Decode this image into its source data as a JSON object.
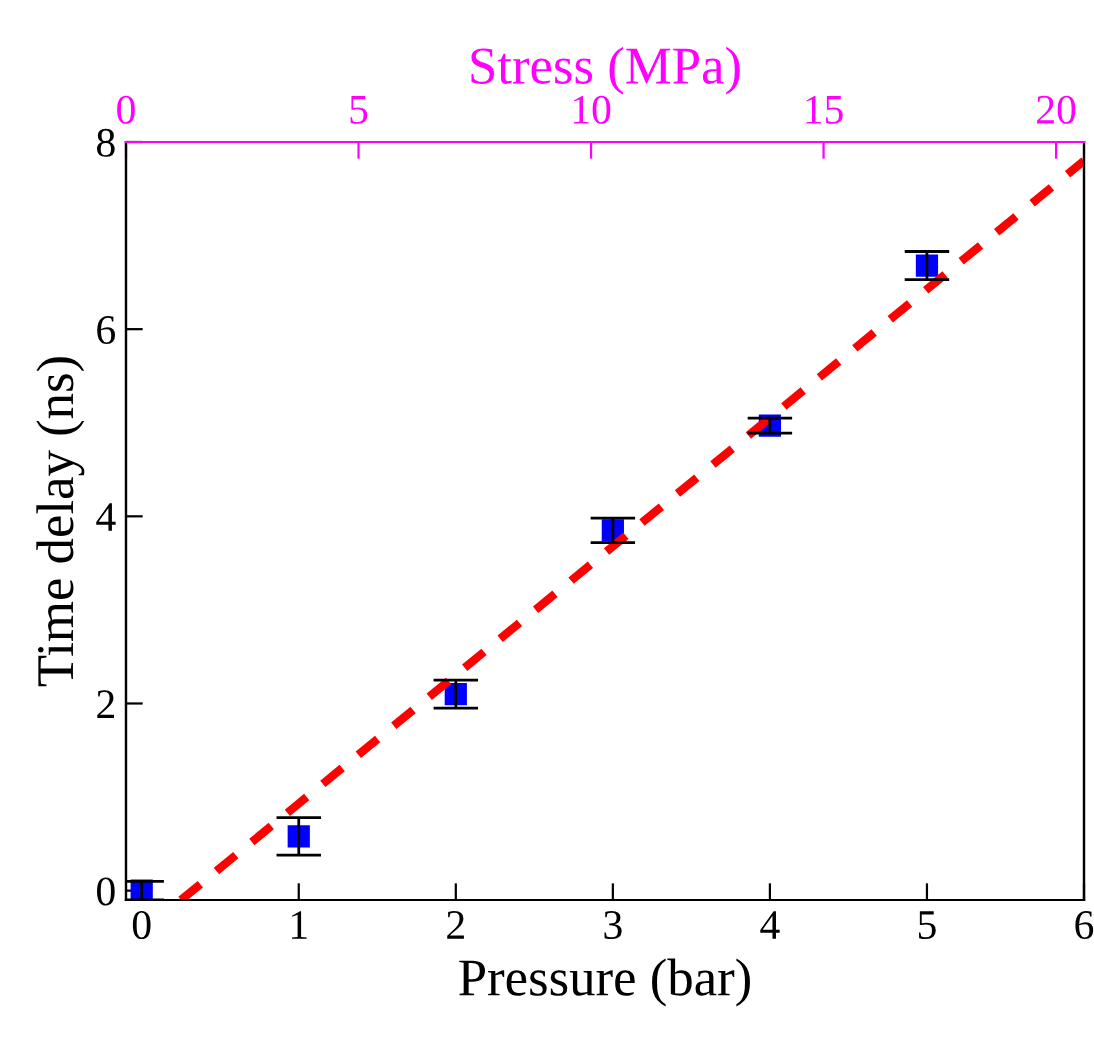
{
  "chart_data": {
    "type": "scatter",
    "xlabel": "Pressure (bar)",
    "ylabel": "Time delay (ns)",
    "x2label": "Stress (MPa)",
    "x": [
      0,
      1,
      2,
      3,
      4,
      5
    ],
    "series": [
      {
        "color": "#0000ff",
        "marker": "square",
        "values": [
          0.0,
          0.58,
          2.1,
          3.85,
          4.97,
          6.68
        ],
        "errors": [
          0.1,
          0.2,
          0.15,
          0.13,
          0.08,
          0.15
        ]
      },
      {
        "type": "line",
        "color": "#ff0000",
        "line_style": "dashed",
        "marker": "none",
        "x": [
          0.25,
          6
        ],
        "values": [
          -0.1,
          7.8
        ]
      }
    ],
    "xlim": [
      -0.1,
      6
    ],
    "xticks": [
      0,
      1,
      2,
      3,
      4,
      5,
      6
    ],
    "ylim": [
      -0.1,
      8
    ],
    "yticks": [
      0,
      2,
      4,
      6,
      8
    ],
    "x2lim": [
      0,
      20.6
    ],
    "x2ticks": [
      0,
      5,
      10,
      15,
      20
    ],
    "grid": false,
    "legend": false
  }
}
